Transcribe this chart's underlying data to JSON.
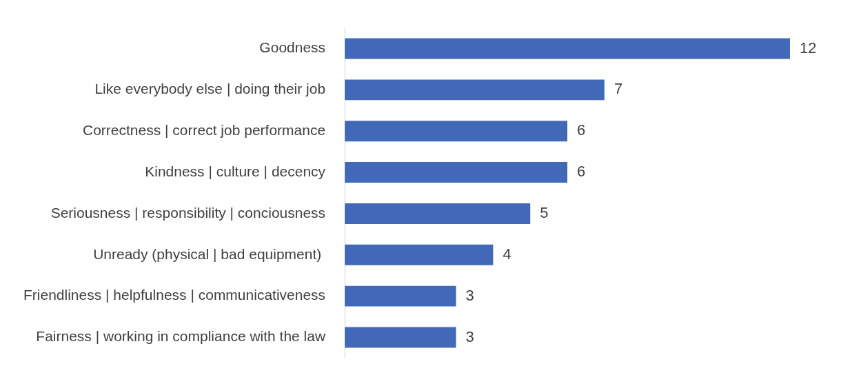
{
  "chart_data": {
    "type": "bar",
    "orientation": "horizontal",
    "categories": [
      "Goodness",
      "Like everybody else | doing their job",
      "Correctness | correct job performance",
      "Kindness | culture | decency",
      "Seriousness | responsibility | conciousness",
      "Unready (physical | bad equipment) ",
      "Friendliness | helpfulness | communicativeness",
      "Fairness | working in compliance with the law"
    ],
    "values": [
      12,
      7,
      6,
      6,
      5,
      4,
      3,
      3
    ],
    "color": "#4169b8",
    "data_labels": true,
    "grid": false,
    "legend": false,
    "tick_labels": "y"
  }
}
